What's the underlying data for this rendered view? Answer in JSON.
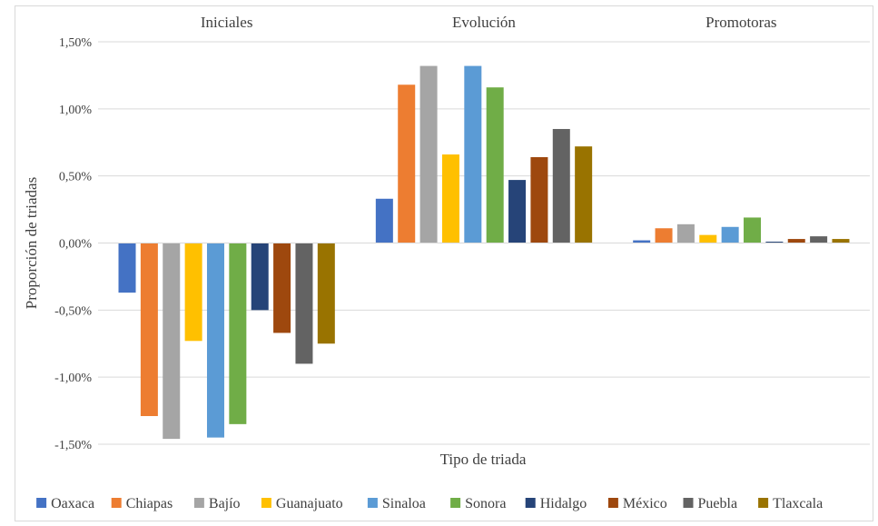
{
  "chart_data": {
    "type": "bar",
    "categories": [
      "Iniciales",
      "Evolución",
      "Promotoras"
    ],
    "xlabel": "Tipo  de triada",
    "ylabel": "Proporción de triadas",
    "ylim": [
      -0.015,
      0.015
    ],
    "yticks": [
      -0.015,
      -0.01,
      -0.005,
      0,
      0.005,
      0.01,
      0.015
    ],
    "ytick_labels": [
      "-1,50%",
      "-1,00%",
      "-0,50%",
      "0,00%",
      "0,50%",
      "1,00%",
      "1,50%"
    ],
    "category_labels_position": "top",
    "grid": true,
    "legend_position": "bottom",
    "series": [
      {
        "name": "Oaxaca",
        "color": "#4472C4",
        "values": [
          -0.0037,
          0.0033,
          0.0002
        ]
      },
      {
        "name": "Chiapas",
        "color": "#ED7D31",
        "values": [
          -0.0129,
          0.0118,
          0.0011
        ]
      },
      {
        "name": "Bajío",
        "color": "#A5A5A5",
        "values": [
          -0.0146,
          0.0132,
          0.0014
        ]
      },
      {
        "name": "Guanajuato",
        "color": "#FFC000",
        "values": [
          -0.0073,
          0.0066,
          0.0006
        ]
      },
      {
        "name": "Sinaloa",
        "color": "#5B9BD5",
        "values": [
          -0.0145,
          0.0132,
          0.0012
        ]
      },
      {
        "name": "Sonora",
        "color": "#70AD47",
        "values": [
          -0.0135,
          0.0116,
          0.0019
        ]
      },
      {
        "name": "Hidalgo",
        "color": "#264478",
        "values": [
          -0.005,
          0.0047,
          0.0001
        ]
      },
      {
        "name": "México",
        "color": "#9E480E",
        "values": [
          -0.0067,
          0.0064,
          0.0003
        ]
      },
      {
        "name": "Puebla",
        "color": "#636363",
        "values": [
          -0.009,
          0.0085,
          0.0005
        ]
      },
      {
        "name": "Tlaxcala",
        "color": "#997300",
        "values": [
          -0.0075,
          0.0072,
          0.0003
        ]
      }
    ]
  }
}
